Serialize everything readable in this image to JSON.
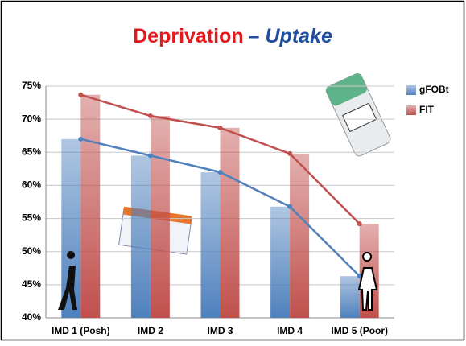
{
  "chart_data": {
    "type": "bar_line",
    "title": "Deprivation",
    "title_suffix": "– Uptake",
    "categories": [
      "IMD 1 (Posh)",
      "IMD 2",
      "IMD 3",
      "IMD 4",
      "IMD 5 (Poor)"
    ],
    "series": [
      {
        "name": "gFOBt",
        "color": "#4f81bd",
        "values": [
          67,
          64.5,
          62,
          56.8,
          46.3
        ]
      },
      {
        "name": "FIT",
        "color": "#c0504d",
        "values": [
          73.7,
          70.5,
          68.7,
          64.8,
          54.2
        ]
      }
    ],
    "ylim": [
      40,
      75
    ],
    "yticks": [
      {
        "value": 40,
        "label": "40%"
      },
      {
        "value": 45,
        "label": "45%"
      },
      {
        "value": 50,
        "label": "50%"
      },
      {
        "value": 55,
        "label": "55%"
      },
      {
        "value": 60,
        "label": "60%"
      },
      {
        "value": 65,
        "label": "65%"
      },
      {
        "value": 70,
        "label": "70%"
      },
      {
        "value": 75,
        "label": "75%"
      }
    ],
    "grid": true,
    "legend": "right"
  }
}
